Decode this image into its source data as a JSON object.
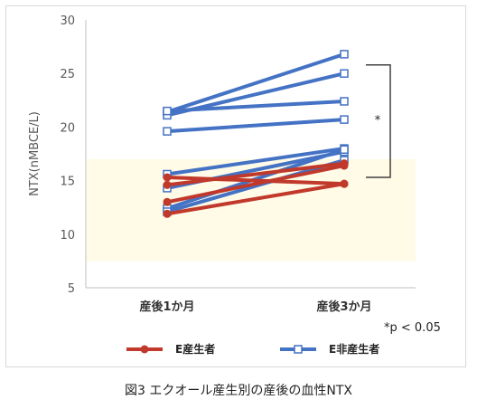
{
  "chart_data": {
    "type": "line",
    "title": "",
    "caption": "図3 エクオール産生別の産後の血性NTX",
    "ylabel": "NTX(nMBCE/L)",
    "xlabel": "",
    "ylim": [
      5,
      30
    ],
    "yticks": [
      "5",
      "10",
      "15",
      "20",
      "25",
      "30"
    ],
    "categories": [
      "産後1か月",
      "産後3か月"
    ],
    "reference_band": [
      7.5,
      17.0
    ],
    "reference_band_color": "#fffbe6",
    "significance_label": "*",
    "footnote": "*p < 0.05",
    "legend_position": "bottom",
    "series": [
      {
        "name": "E産生者",
        "color": "#c0392b",
        "marker": "filled-circle",
        "lines": [
          [
            15.3,
            14.7
          ],
          [
            14.6,
            16.6
          ],
          [
            13.0,
            16.4
          ],
          [
            11.9,
            14.7
          ]
        ]
      },
      {
        "name": "E非産生者",
        "color": "#4472c4",
        "marker": "open-square",
        "lines": [
          [
            21.4,
            26.8
          ],
          [
            21.1,
            25.0
          ],
          [
            21.5,
            22.4
          ],
          [
            19.6,
            20.7
          ],
          [
            15.6,
            18.0
          ],
          [
            14.3,
            17.7
          ],
          [
            12.4,
            17.9
          ],
          [
            12.1,
            16.9
          ]
        ]
      }
    ]
  }
}
